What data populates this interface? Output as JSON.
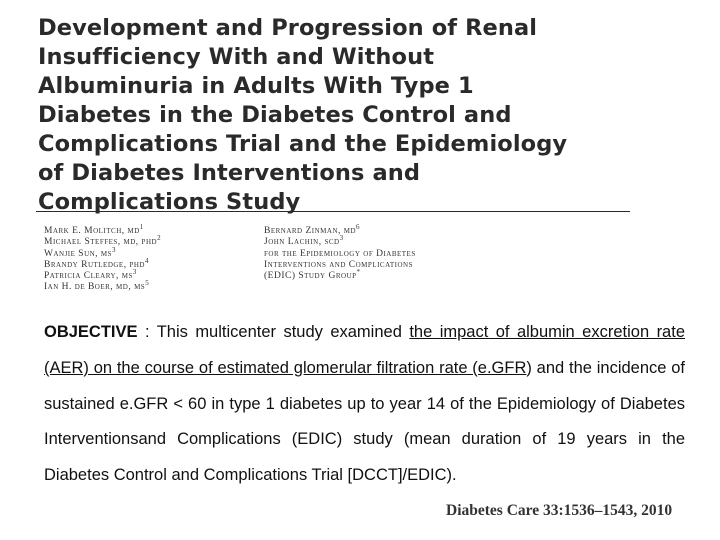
{
  "title_lines": [
    "Development and Progression of Renal",
    "Insufficiency With and Without",
    "Albuminuria in Adults With Type 1",
    "Diabetes in the Diabetes Control and",
    "Complications Trial and the Epidemiology",
    "of Diabetes Interventions and",
    "Complications Study"
  ],
  "authors_left": [
    {
      "name": "Mark E. Molitch, md",
      "sup": "1"
    },
    {
      "name": "Michael Steffes, md, phd",
      "sup": "2"
    },
    {
      "name": "Wanjie Sun, ms",
      "sup": "3"
    },
    {
      "name": "Brandy Rutledge, phd",
      "sup": "4"
    },
    {
      "name": "Patricia Cleary, ms",
      "sup": "3"
    },
    {
      "name": "Ian H. de Boer, md, ms",
      "sup": "5"
    }
  ],
  "authors_right": [
    {
      "name": "Bernard Zinman, md",
      "sup": "6"
    },
    {
      "name": "John Lachin, scd",
      "sup": "3"
    },
    {
      "name": "for the Epidemiology of Diabetes",
      "sup": ""
    },
    {
      "name": "Interventions and Complications",
      "sup": ""
    },
    {
      "name": "(EDIC) Study Group",
      "sup": "*"
    }
  ],
  "abstract": {
    "label": "OBJECTIVE",
    "sep": " : This multicenter study examined ",
    "u1": "the impact of albumin excretion rate (AER) on the course of estimated glomerular filtration rate (e.GFR",
    "t2": ") and the incidence of sustained e.GFR < 60 in type 1 diabetes up to year 14 of the Epidemiology of Diabetes Interventionsand Complications (EDIC) study (mean duration of 19 years in the Diabetes Control and Complications Trial [DCCT]/EDIC)."
  },
  "citation": "Diabetes Care 33:1536–1543, 2010"
}
